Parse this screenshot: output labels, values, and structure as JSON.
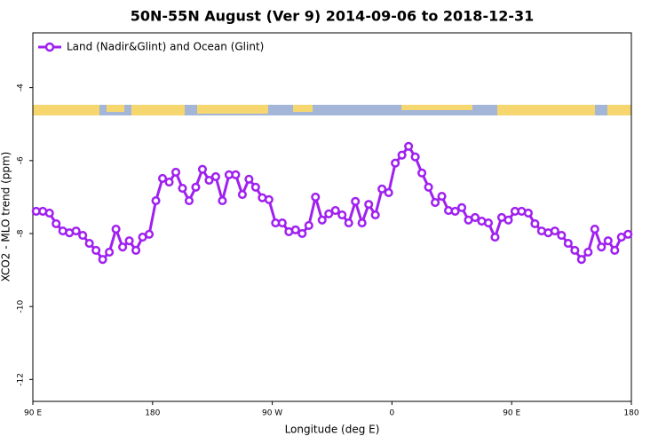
{
  "chart_data": {
    "type": "line",
    "title": "50N-55N August (Ver 9)   2014-09-06 to 2018-12-31",
    "x_label": "Longitude (deg E)",
    "y_label": "XCO2 - MLO trend (ppm)",
    "x": [
      92.5,
      97.5,
      102.5,
      107.5,
      112.5,
      117.5,
      122.5,
      127.5,
      132.5,
      137.5,
      142.5,
      147.5,
      152.5,
      157.5,
      162.5,
      167.5,
      172.5,
      177.5,
      182.5,
      187.5,
      192.5,
      197.5,
      202.5,
      207.5,
      212.5,
      217.5,
      222.5,
      227.5,
      232.5,
      237.5,
      242.5,
      247.5,
      252.5,
      257.5,
      262.5,
      267.5,
      272.5,
      277.5,
      282.5,
      287.5,
      292.5,
      297.5,
      302.5,
      307.5,
      312.5,
      317.5,
      322.5,
      327.5,
      332.5,
      337.5,
      342.5,
      347.5,
      352.5,
      357.5,
      362.5,
      367.5,
      372.5,
      377.5,
      382.5,
      387.5,
      392.5,
      397.5,
      402.5,
      407.5,
      412.5,
      417.5,
      422.5,
      427.5,
      432.5,
      437.5,
      442.5,
      447.5,
      452.5,
      457.5,
      462.5,
      467.5,
      472.5,
      477.5,
      482.5,
      487.5,
      492.5,
      497.5,
      502.5,
      507.5,
      512.5,
      517.5,
      522.5,
      527.5,
      532.5,
      537.5
    ],
    "series": [
      {
        "name": "Land (Nadir&Glint) and Ocean (Glint)",
        "color": "#a020f0",
        "values": [
          -7.39,
          -7.39,
          -7.44,
          -7.73,
          -7.93,
          -7.98,
          -7.93,
          -8.05,
          -8.27,
          -8.46,
          -8.71,
          -8.51,
          -7.88,
          -8.37,
          -8.2,
          -8.46,
          -8.1,
          -8.02,
          -7.1,
          -6.49,
          -6.59,
          -6.32,
          -6.76,
          -7.1,
          -6.73,
          -6.24,
          -6.54,
          -6.44,
          -7.1,
          -6.39,
          -6.39,
          -6.93,
          -6.51,
          -6.73,
          -7.02,
          -7.07,
          -7.71,
          -7.71,
          -7.95,
          -7.9,
          -8.0,
          -7.78,
          -7.0,
          -7.63,
          -7.46,
          -7.37,
          -7.49,
          -7.71,
          -7.12,
          -7.71,
          -7.2,
          -7.49,
          -6.78,
          -6.88,
          -6.07,
          -5.85,
          -5.61,
          -5.9,
          -6.34,
          -6.73,
          -7.15,
          -6.98,
          -7.37,
          -7.39,
          -7.29,
          -7.63,
          -7.56,
          -7.66,
          -7.71,
          -8.1,
          -7.56,
          -7.63,
          -7.39,
          -7.39,
          -7.44,
          -7.73,
          -7.93,
          -7.98,
          -7.93,
          -8.05,
          -8.27,
          -8.46,
          -8.71,
          -8.51,
          -7.88,
          -8.37,
          -8.2,
          -8.46,
          -8.1,
          -8.02
        ]
      }
    ],
    "xlim": [
      90,
      540
    ],
    "xticks": [
      {
        "value": 90,
        "label": "90 E"
      },
      {
        "value": 180,
        "label": "180"
      },
      {
        "value": 270,
        "label": "90 W"
      },
      {
        "value": 360,
        "label": "0"
      },
      {
        "value": 450,
        "label": "90 E"
      },
      {
        "value": 540,
        "label": "180"
      }
    ],
    "ylim": [
      -12.6,
      -2.5
    ],
    "yticks": [
      -4,
      -6,
      -8,
      -10,
      -12
    ],
    "legend": "top-left"
  }
}
